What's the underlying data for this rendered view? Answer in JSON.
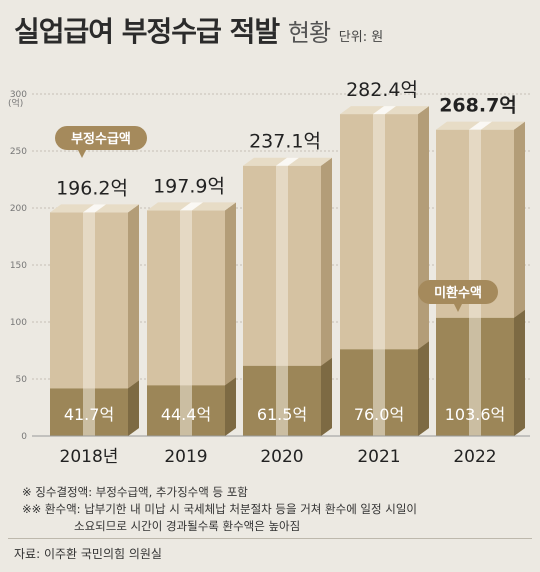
{
  "header": {
    "title_main": "실업급여 부정수급 적발",
    "title_sub": "현황",
    "unit": "단위: 원"
  },
  "chart_data": {
    "type": "bar",
    "categories": [
      "2018년",
      "2019",
      "2020",
      "2021",
      "2022"
    ],
    "ylim": [
      0,
      300
    ],
    "yticks": [
      0,
      50,
      100,
      150,
      200,
      250,
      300
    ],
    "ylabel": "(억)",
    "series": [
      {
        "name": "부정수급액",
        "values": [
          196.2,
          197.9,
          237.1,
          282.4,
          268.7
        ],
        "labels": [
          "196.2억",
          "197.9억",
          "237.1억",
          "282.4억",
          "268.7억"
        ]
      },
      {
        "name": "미환수액",
        "values": [
          41.7,
          44.4,
          61.5,
          76.0,
          103.6
        ],
        "labels": [
          "41.7억",
          "44.4억",
          "61.5억",
          "76.0억",
          "103.6억"
        ]
      }
    ],
    "legend_callouts": [
      "부정수급액",
      "미환수액"
    ],
    "colors": {
      "total_front": "#d5c2a2",
      "total_side": "#b39d78",
      "total_top": "#e7dcc6",
      "remain_front": "#9c8658",
      "remain_side": "#7d6a43",
      "stripe": "#f2ece0",
      "callout_bg": "#a58a5c"
    }
  },
  "notes": [
    "※ 징수결정액: 부정수급액, 추가징수액 등 포함",
    "※※ 환수액: 납부기한 내 미납 시 국세체납 처분절차 등을 거쳐 환수에 일정 시일이",
    "소요되므로 시간이 경과될수록 환수액은 높아짐"
  ],
  "source": "자료: 이주환 국민의힘 의원실"
}
